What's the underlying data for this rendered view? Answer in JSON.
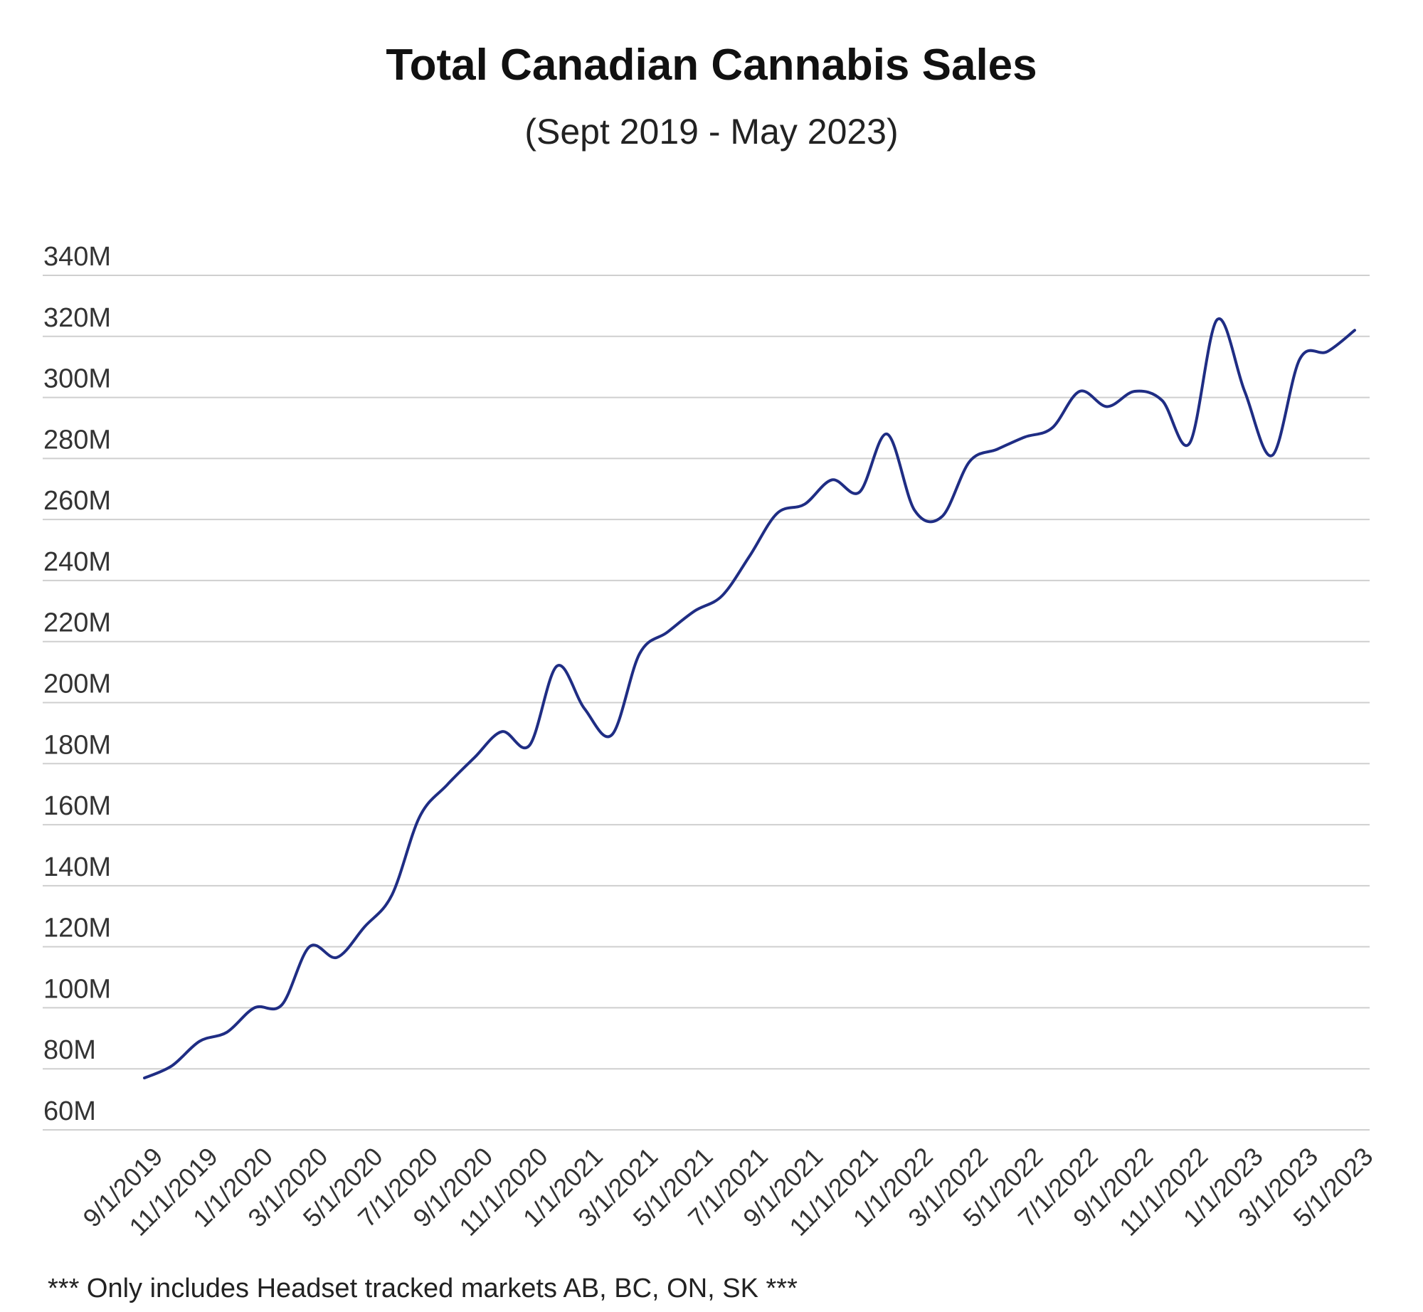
{
  "chart_data": {
    "type": "line",
    "title": "Total Canadian Cannabis Sales",
    "subtitle": "(Sept 2019 - May 2023)",
    "footnote": "*** Only includes Headset tracked markets AB, BC, ON, SK ***",
    "xlabel": "",
    "ylabel": "",
    "ylim": [
      60,
      340
    ],
    "y_unit": "M",
    "y_ticks": [
      "60M",
      "80M",
      "100M",
      "120M",
      "140M",
      "160M",
      "180M",
      "200M",
      "220M",
      "240M",
      "260M",
      "280M",
      "300M",
      "320M",
      "340M"
    ],
    "x_tick_labels": [
      "9/1/2019",
      "11/1/2019",
      "1/1/2020",
      "3/1/2020",
      "5/1/2020",
      "7/1/2020",
      "9/1/2020",
      "11/1/2020",
      "1/1/2021",
      "3/1/2021",
      "5/1/2021",
      "7/1/2021",
      "9/1/2021",
      "11/1/2021",
      "1/1/2022",
      "3/1/2022",
      "5/1/2022",
      "7/1/2022",
      "9/1/2022",
      "11/1/2022",
      "1/1/2023",
      "3/1/2023",
      "5/1/2023"
    ],
    "grid": true,
    "legend": "none",
    "line_color": "#1f2d84",
    "series": [
      {
        "x": [
          "9/1/2019",
          "10/1/2019",
          "11/1/2019",
          "12/1/2019",
          "1/1/2020",
          "2/1/2020",
          "3/1/2020",
          "4/1/2020",
          "5/1/2020",
          "6/1/2020",
          "7/1/2020",
          "8/1/2020",
          "9/1/2020",
          "10/1/2020",
          "11/1/2020",
          "12/1/2020",
          "1/1/2021",
          "2/1/2021",
          "3/1/2021",
          "4/1/2021",
          "5/1/2021",
          "6/1/2021",
          "7/1/2021",
          "8/1/2021",
          "9/1/2021",
          "10/1/2021",
          "11/1/2021",
          "12/1/2021",
          "1/1/2022",
          "2/1/2022",
          "3/1/2022",
          "4/1/2022",
          "5/1/2022",
          "6/1/2022",
          "7/1/2022",
          "8/1/2022",
          "9/1/2022",
          "10/1/2022",
          "11/1/2022",
          "12/1/2022",
          "1/1/2023",
          "2/1/2023",
          "3/1/2023",
          "4/1/2023",
          "5/1/2023"
        ],
        "values": [
          77,
          81,
          89,
          92,
          100,
          101,
          120,
          116.5,
          126.5,
          137,
          162.5,
          173,
          182,
          190.5,
          186,
          212,
          198,
          189.5,
          216,
          223,
          230,
          235,
          248,
          262,
          265,
          273,
          269,
          288,
          263,
          261,
          279,
          283,
          287,
          290,
          302,
          297,
          302,
          299,
          285,
          325.5,
          302,
          281,
          312.5,
          315,
          322
        ]
      }
    ]
  }
}
